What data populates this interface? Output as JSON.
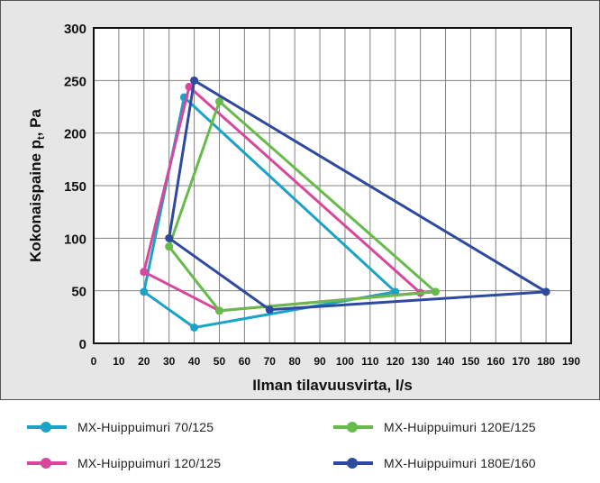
{
  "chart_data": {
    "type": "line",
    "xlabel": "Ilman tilavuusvirta, l/s",
    "ylabel_main": "Kokonaispaine p",
    "ylabel_sub": "t",
    "ylabel_tail": ", Pa",
    "xlim": [
      0,
      190
    ],
    "ylim": [
      0,
      300
    ],
    "x_ticks": [
      "0",
      "10",
      "20",
      "30",
      "40",
      "50",
      "60",
      "70",
      "80",
      "90",
      "100",
      "110",
      "120",
      "130",
      "140",
      "150",
      "160",
      "170",
      "180",
      "190"
    ],
    "y_ticks": [
      "0",
      "50",
      "100",
      "150",
      "200",
      "250",
      "300"
    ],
    "grid": true,
    "series": [
      {
        "name": "MX-Huippuimuri 70/125",
        "color": "#1aa3c7",
        "points": [
          [
            40,
            15
          ],
          [
            20,
            49
          ],
          [
            36,
            234
          ],
          [
            120,
            49
          ],
          [
            40,
            15
          ]
        ]
      },
      {
        "name": "MX-Huippuimuri 120/125",
        "color": "#d9479c",
        "points": [
          [
            50,
            31
          ],
          [
            20,
            68
          ],
          [
            38,
            244
          ],
          [
            130,
            48
          ],
          [
            50,
            31
          ]
        ]
      },
      {
        "name": "MX-Huippuimuri 120E/125",
        "color": "#66bb4a",
        "points": [
          [
            50,
            31
          ],
          [
            30,
            92
          ],
          [
            50,
            230
          ],
          [
            136,
            49
          ],
          [
            50,
            31
          ]
        ]
      },
      {
        "name": "MX-Huippuimuri 180E/160",
        "color": "#2e4aa0",
        "points": [
          [
            70,
            32
          ],
          [
            30,
            100
          ],
          [
            40,
            250
          ],
          [
            180,
            49
          ],
          [
            70,
            32
          ]
        ]
      }
    ]
  }
}
